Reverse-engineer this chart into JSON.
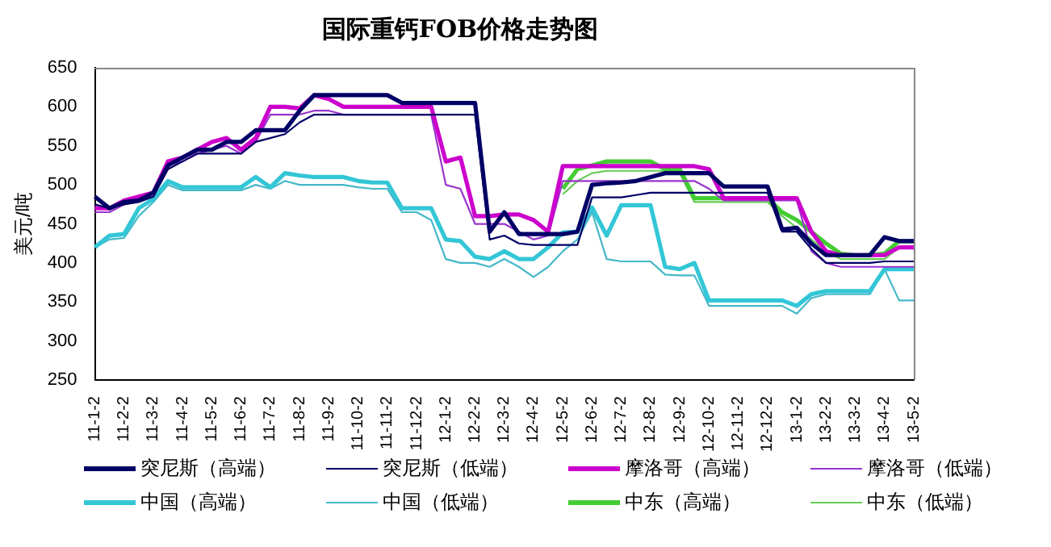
{
  "chart_data": {
    "type": "line",
    "title": "国际重钙FOB价格走势图",
    "ylabel": "美元/吨",
    "categories": [
      "11-1-2",
      null,
      "11-2-2",
      null,
      "11-3-2",
      null,
      "11-4-2",
      null,
      "11-5-2",
      null,
      "11-6-2",
      null,
      "11-7-2",
      null,
      "11-8-2",
      null,
      "11-9-2",
      null,
      "11-10-2",
      null,
      "11-11-2",
      null,
      "11-12-2",
      null,
      "12-1-2",
      null,
      "12-2-2",
      null,
      "12-3-2",
      null,
      "12-4-2",
      null,
      "12-5-2",
      null,
      "12-6-2",
      null,
      "12-7-2",
      null,
      "12-8-2",
      null,
      "12-9-2",
      null,
      "12-10-2",
      null,
      "12-11-2",
      null,
      "12-12-2",
      null,
      "13-1-2",
      null,
      "13-2-2",
      null,
      "13-3-2",
      null,
      "13-4-2",
      null,
      "13-5-2"
    ],
    "ylim": [
      250,
      650
    ],
    "yticks": [
      250,
      300,
      350,
      400,
      450,
      500,
      550,
      600,
      650
    ],
    "legend": "bottom",
    "marker": "none",
    "series": [
      {
        "name": "突尼斯（高端）",
        "color": "#000066",
        "values": [
          485,
          470,
          478,
          480,
          490,
          525,
          535,
          545,
          545,
          555,
          555,
          570,
          570,
          570,
          595,
          615,
          615,
          615,
          615,
          615,
          615,
          605,
          605,
          605,
          605,
          605,
          605,
          440,
          465,
          437,
          437,
          437,
          437,
          440,
          500,
          502,
          503,
          505,
          510,
          515,
          515,
          515,
          515,
          498,
          498,
          498,
          498,
          443,
          445,
          425,
          410,
          410,
          410,
          410,
          433,
          428,
          428
        ]
      },
      {
        "name": "突尼斯（低端）",
        "color": "#000066",
        "values": [
          475,
          470,
          475,
          478,
          485,
          520,
          530,
          540,
          540,
          540,
          540,
          555,
          560,
          565,
          580,
          590,
          590,
          590,
          590,
          590,
          590,
          590,
          590,
          590,
          590,
          590,
          590,
          430,
          435,
          425,
          423,
          423,
          423,
          423,
          484,
          484,
          484,
          487,
          490,
          490,
          490,
          490,
          490,
          490,
          490,
          490,
          490,
          440,
          440,
          418,
          400,
          400,
          400,
          400,
          402,
          402,
          402
        ]
      },
      {
        "name": "摩洛哥（高端）",
        "color": "#cc00cc",
        "values": [
          470,
          470,
          480,
          485,
          490,
          530,
          535,
          545,
          555,
          560,
          545,
          560,
          600,
          600,
          598,
          615,
          610,
          600,
          600,
          600,
          600,
          600,
          600,
          600,
          530,
          535,
          460,
          460,
          462,
          462,
          455,
          440,
          524,
          524,
          524,
          524,
          524,
          524,
          524,
          524,
          524,
          524,
          520,
          483,
          483,
          483,
          483,
          483,
          483,
          440,
          415,
          410,
          410,
          410,
          410,
          420,
          420
        ]
      },
      {
        "name": "摩洛哥（低端）",
        "color": "#9933cc",
        "values": [
          465,
          465,
          475,
          480,
          485,
          525,
          530,
          540,
          545,
          550,
          540,
          555,
          590,
          590,
          590,
          595,
          595,
          590,
          590,
          590,
          590,
          590,
          590,
          590,
          500,
          495,
          450,
          450,
          450,
          440,
          430,
          435,
          505,
          505,
          505,
          505,
          505,
          505,
          505,
          505,
          505,
          505,
          495,
          480,
          480,
          480,
          480,
          480,
          480,
          415,
          400,
          395,
          395,
          395,
          395,
          395,
          395
        ]
      },
      {
        "name": "中国（高端）",
        "color": "#33c6d6",
        "values": [
          420,
          435,
          437,
          470,
          482,
          505,
          497,
          497,
          497,
          497,
          497,
          510,
          497,
          515,
          512,
          510,
          510,
          510,
          505,
          503,
          503,
          470,
          470,
          470,
          430,
          428,
          408,
          405,
          415,
          405,
          405,
          420,
          439,
          440,
          471,
          435,
          474,
          474,
          474,
          395,
          392,
          400,
          352,
          352,
          352,
          352,
          352,
          352,
          345,
          360,
          364,
          364,
          364,
          364,
          392,
          392,
          392
        ]
      },
      {
        "name": "中国（低端）",
        "color": "#45b8c8",
        "values": [
          420,
          430,
          432,
          460,
          478,
          500,
          493,
          493,
          493,
          493,
          493,
          500,
          495,
          505,
          500,
          500,
          500,
          500,
          497,
          495,
          495,
          465,
          465,
          455,
          405,
          400,
          400,
          395,
          405,
          395,
          382,
          395,
          415,
          430,
          465,
          405,
          402,
          402,
          402,
          385,
          384,
          384,
          345,
          345,
          345,
          345,
          345,
          345,
          335,
          355,
          360,
          360,
          360,
          360,
          392,
          352,
          352
        ]
      },
      {
        "name": "中东（高端）",
        "color": "#44cc33",
        "values": [
          null,
          null,
          null,
          null,
          null,
          null,
          null,
          null,
          null,
          null,
          null,
          null,
          null,
          null,
          null,
          null,
          null,
          null,
          null,
          null,
          null,
          null,
          null,
          null,
          null,
          null,
          null,
          null,
          null,
          null,
          null,
          null,
          495,
          520,
          525,
          530,
          530,
          530,
          530,
          520,
          520,
          483,
          483,
          483,
          483,
          483,
          483,
          465,
          455,
          440,
          425,
          412,
          410,
          410,
          412,
          428,
          428
        ]
      },
      {
        "name": "中东（低端）",
        "color": "#66cc55",
        "values": [
          null,
          null,
          null,
          null,
          null,
          null,
          null,
          null,
          null,
          null,
          null,
          null,
          null,
          null,
          null,
          null,
          null,
          null,
          null,
          null,
          null,
          null,
          null,
          null,
          null,
          null,
          null,
          null,
          null,
          null,
          null,
          null,
          488,
          505,
          515,
          518,
          518,
          518,
          518,
          518,
          515,
          478,
          478,
          478,
          478,
          478,
          478,
          460,
          445,
          430,
          415,
          405,
          405,
          405,
          405,
          420,
          420
        ]
      }
    ]
  }
}
